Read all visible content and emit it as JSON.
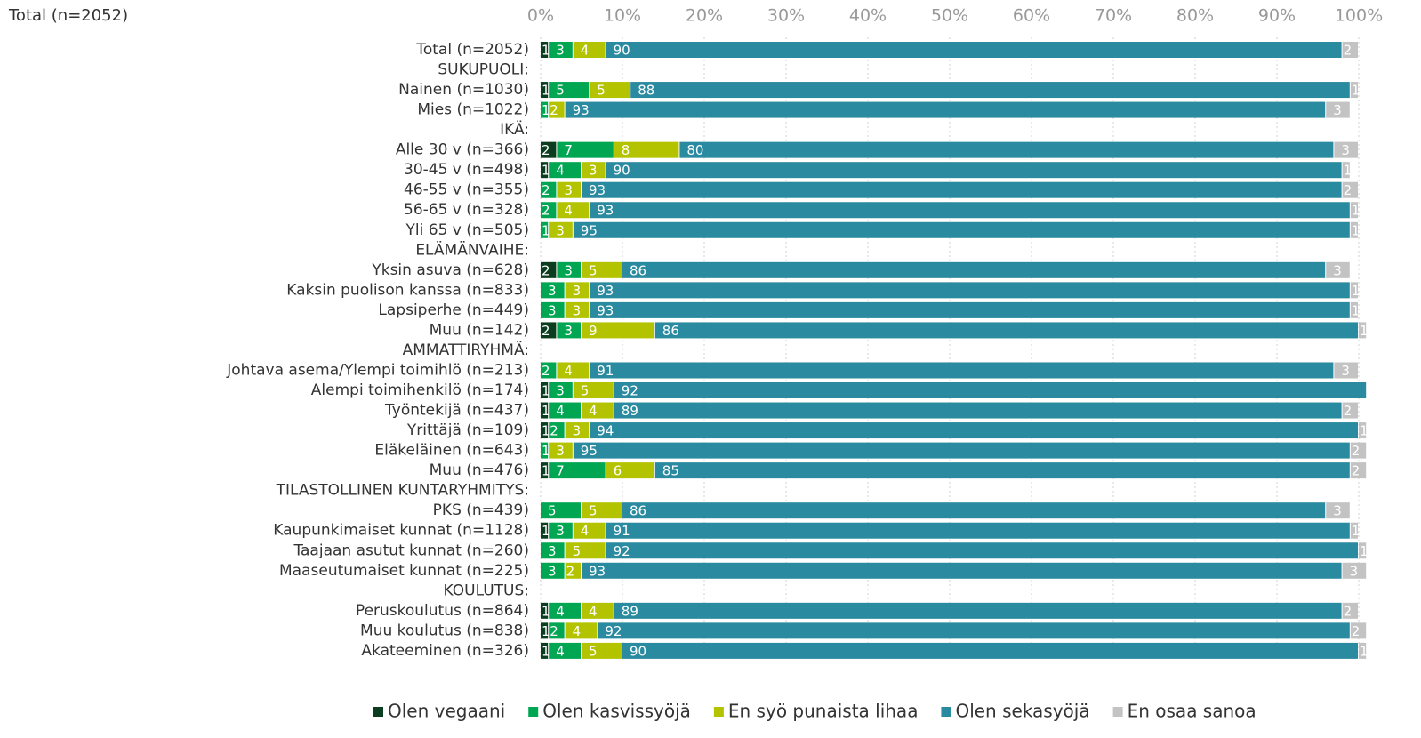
{
  "chart_data": {
    "type": "stacked-barh",
    "title": "Total (n=2052)",
    "categories": [
      "Total (n=2052)",
      "SUKUPUOLI:",
      "Nainen (n=1030)",
      "Mies (n=1022)",
      "IKÄ:",
      "Alle 30 v (n=366)",
      "30-45 v (n=498)",
      "46-55 v (n=355)",
      "56-65 v (n=328)",
      "Yli 65 v (n=505)",
      "ELÄMÄNVAIHE:",
      "Yksin asuva (n=628)",
      "Kaksin puolison kanssa (n=833)",
      "Lapsiperhe (n=449)",
      "Muu (n=142)",
      "AMMATTIRYHMÄ:",
      "Johtava asema/Ylempi toimihlö (n=213)",
      "Alempi toimihenkilö (n=174)",
      "Työntekijä (n=437)",
      "Yrittäjä (n=109)",
      "Eläkeläinen (n=643)",
      "Muu (n=476)",
      "TILASTOLLINEN KUNTARYHMITYS:",
      "PKS (n=439)",
      "Kaupunkimaiset kunnat (n=1128)",
      "Taajaan asutut kunnat (n=260)",
      "Maaseutumaiset kunnat (n=225)",
      "KOULUTUS:",
      "Peruskoulutus (n=864)",
      "Muu koulutus (n=838)",
      "Akateeminen (n=326)"
    ],
    "series": [
      {
        "name": "Olen vegaani",
        "color": "#0b3d1f",
        "values": [
          1,
          null,
          1,
          null,
          null,
          2,
          1,
          null,
          null,
          null,
          null,
          2,
          null,
          null,
          2,
          null,
          null,
          1,
          1,
          1,
          null,
          1,
          null,
          null,
          1,
          null,
          null,
          null,
          1,
          1,
          1
        ]
      },
      {
        "name": "Olen kasvissyöjä",
        "color": "#00a651",
        "values": [
          3,
          null,
          5,
          1,
          null,
          7,
          4,
          2,
          2,
          1,
          null,
          3,
          3,
          3,
          3,
          null,
          2,
          3,
          4,
          2,
          1,
          7,
          null,
          5,
          3,
          3,
          3,
          null,
          4,
          2,
          4
        ]
      },
      {
        "name": "En syö punaista lihaa",
        "color": "#b3c300",
        "values": [
          4,
          null,
          5,
          2,
          null,
          8,
          3,
          3,
          4,
          3,
          null,
          5,
          3,
          3,
          9,
          null,
          4,
          5,
          4,
          3,
          3,
          6,
          null,
          5,
          4,
          5,
          2,
          null,
          4,
          4,
          5
        ]
      },
      {
        "name": "Olen sekasyöjä",
        "color": "#2a8a9f",
        "values": [
          90,
          null,
          88,
          93,
          null,
          80,
          90,
          93,
          93,
          95,
          null,
          86,
          93,
          93,
          86,
          null,
          91,
          92,
          89,
          94,
          95,
          85,
          null,
          86,
          91,
          92,
          93,
          null,
          89,
          92,
          90
        ]
      },
      {
        "name": "En osaa sanoa",
        "color": "#c3c3c3",
        "values": [
          2,
          null,
          1,
          3,
          null,
          3,
          1,
          2,
          1,
          1,
          null,
          3,
          1,
          1,
          1,
          null,
          3,
          null,
          2,
          1,
          2,
          2,
          null,
          3,
          1,
          1,
          3,
          null,
          2,
          2,
          1
        ]
      }
    ],
    "xlim": [
      0,
      100
    ],
    "xticks": [
      {
        "value": 0,
        "label": "0%"
      },
      {
        "value": 10,
        "label": "10%"
      },
      {
        "value": 20,
        "label": "20%"
      },
      {
        "value": 30,
        "label": "30%"
      },
      {
        "value": 40,
        "label": "40%"
      },
      {
        "value": 50,
        "label": "50%"
      },
      {
        "value": 60,
        "label": "60%"
      },
      {
        "value": 70,
        "label": "70%"
      },
      {
        "value": 80,
        "label": "80%"
      },
      {
        "value": 90,
        "label": "90%"
      },
      {
        "value": 100,
        "label": "100%"
      }
    ],
    "grid": true,
    "legend": "bottom"
  }
}
